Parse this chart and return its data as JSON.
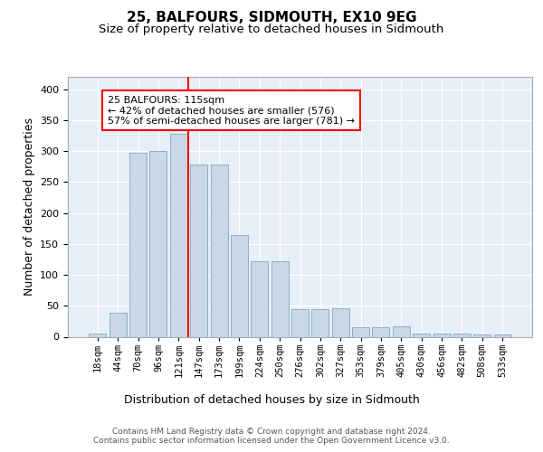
{
  "title": "25, BALFOURS, SIDMOUTH, EX10 9EG",
  "subtitle": "Size of property relative to detached houses in Sidmouth",
  "xlabel": "Distribution of detached houses by size in Sidmouth",
  "ylabel": "Number of detached properties",
  "bar_labels": [
    "18sqm",
    "44sqm",
    "70sqm",
    "96sqm",
    "121sqm",
    "147sqm",
    "173sqm",
    "199sqm",
    "224sqm",
    "250sqm",
    "276sqm",
    "302sqm",
    "327sqm",
    "353sqm",
    "379sqm",
    "405sqm",
    "430sqm",
    "456sqm",
    "482sqm",
    "508sqm",
    "533sqm"
  ],
  "bar_values": [
    5,
    38,
    298,
    300,
    328,
    278,
    278,
    165,
    122,
    122,
    44,
    44,
    46,
    15,
    15,
    17,
    5,
    5,
    5,
    3,
    3
  ],
  "bar_color": "#c8d8e8",
  "bar_edge_color": "#7aaabb",
  "vline_color": "red",
  "vline_x": 4.5,
  "annotation_text": "25 BALFOURS: 115sqm\n← 42% of detached houses are smaller (576)\n57% of semi-detached houses are larger (781) →",
  "ylim": [
    0,
    420
  ],
  "yticks": [
    0,
    50,
    100,
    150,
    200,
    250,
    300,
    350,
    400
  ],
  "background_color": "#e8eef8",
  "footer_text": "Contains HM Land Registry data © Crown copyright and database right 2024.\nContains public sector information licensed under the Open Government Licence v3.0.",
  "title_fontsize": 11,
  "subtitle_fontsize": 9.5,
  "xlabel_fontsize": 9,
  "ylabel_fontsize": 9,
  "tick_fontsize": 7.5,
  "ytick_fontsize": 8,
  "annotation_fontsize": 8,
  "footer_fontsize": 6.5
}
